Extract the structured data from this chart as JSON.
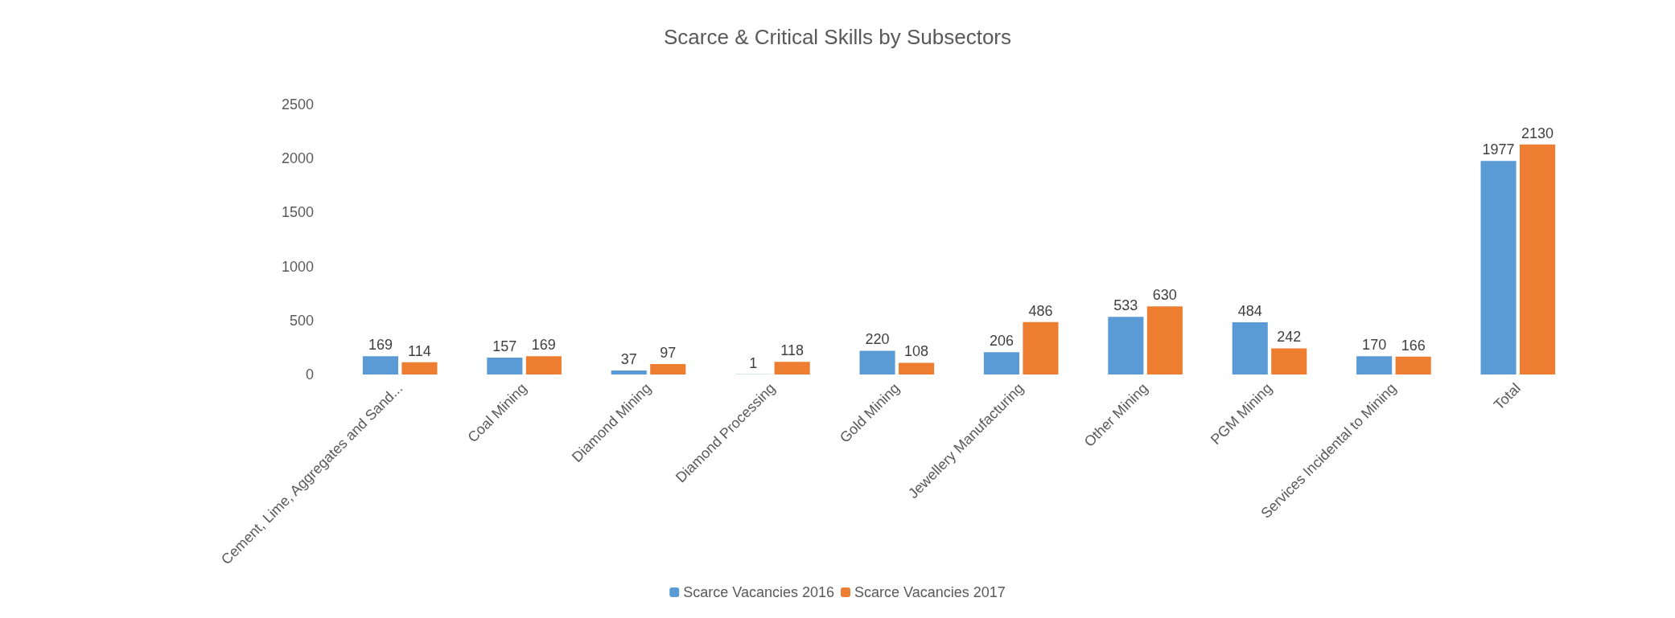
{
  "chart_data": {
    "type": "bar",
    "title": "Scarce & Critical Skills by Subsectors",
    "categories": [
      "Cement, Lime, Aggregates and Sand...",
      "Coal Mining",
      "Diamond Mining",
      "Diamond Processing",
      "Gold Mining",
      "Jewellery Manufacturing",
      "Other Mining",
      "PGM Mining",
      "Services Incidental to Mining",
      "Total"
    ],
    "series": [
      {
        "name": "Scarce Vacancies 2016",
        "color": "#5b9bd5",
        "values": [
          169,
          157,
          37,
          1,
          220,
          206,
          533,
          484,
          170,
          1977
        ]
      },
      {
        "name": "Scarce Vacancies 2017",
        "color": "#ed7d31",
        "values": [
          114,
          169,
          97,
          118,
          108,
          486,
          630,
          242,
          166,
          2130
        ]
      }
    ],
    "ylim": [
      0,
      2500
    ],
    "yticks": [
      0,
      500,
      1000,
      1500,
      2000,
      2500
    ],
    "grid": false,
    "legend": "bottom",
    "data_labels": true
  }
}
